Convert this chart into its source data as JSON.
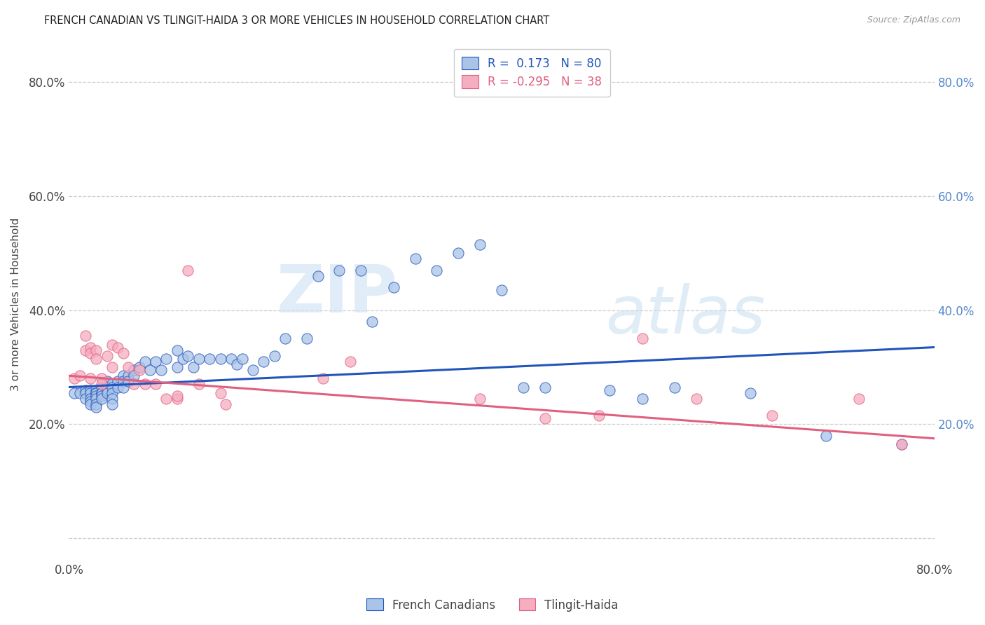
{
  "title": "FRENCH CANADIAN VS TLINGIT-HAIDA 3 OR MORE VEHICLES IN HOUSEHOLD CORRELATION CHART",
  "source": "Source: ZipAtlas.com",
  "ylabel": "3 or more Vehicles in Household",
  "legend_label1": "French Canadians",
  "legend_label2": "Tlingit-Haida",
  "r1": 0.173,
  "n1": 80,
  "r2": -0.295,
  "n2": 38,
  "color_blue": "#aac4e8",
  "color_pink": "#f5adc0",
  "line_color_blue": "#2255bb",
  "line_color_pink": "#e06080",
  "watermark_zip": "ZIP",
  "watermark_atlas": "atlas",
  "xlim": [
    0.0,
    0.8
  ],
  "ylim": [
    -0.04,
    0.86
  ],
  "blue_scatter_x": [
    0.005,
    0.01,
    0.015,
    0.015,
    0.015,
    0.02,
    0.02,
    0.02,
    0.02,
    0.02,
    0.025,
    0.025,
    0.025,
    0.025,
    0.025,
    0.025,
    0.025,
    0.03,
    0.03,
    0.03,
    0.03,
    0.03,
    0.035,
    0.035,
    0.035,
    0.035,
    0.04,
    0.04,
    0.04,
    0.04,
    0.04,
    0.045,
    0.045,
    0.05,
    0.05,
    0.05,
    0.055,
    0.055,
    0.06,
    0.06,
    0.065,
    0.07,
    0.075,
    0.08,
    0.085,
    0.09,
    0.1,
    0.1,
    0.105,
    0.11,
    0.115,
    0.12,
    0.13,
    0.14,
    0.15,
    0.155,
    0.16,
    0.17,
    0.18,
    0.19,
    0.2,
    0.22,
    0.23,
    0.25,
    0.27,
    0.28,
    0.3,
    0.32,
    0.34,
    0.36,
    0.38,
    0.4,
    0.42,
    0.44,
    0.5,
    0.53,
    0.56,
    0.63,
    0.7,
    0.77
  ],
  "blue_scatter_y": [
    0.255,
    0.255,
    0.26,
    0.255,
    0.245,
    0.26,
    0.255,
    0.245,
    0.24,
    0.235,
    0.26,
    0.255,
    0.255,
    0.25,
    0.245,
    0.235,
    0.23,
    0.265,
    0.255,
    0.255,
    0.25,
    0.245,
    0.275,
    0.265,
    0.26,
    0.255,
    0.27,
    0.265,
    0.255,
    0.245,
    0.235,
    0.275,
    0.265,
    0.285,
    0.275,
    0.265,
    0.285,
    0.275,
    0.295,
    0.285,
    0.3,
    0.31,
    0.295,
    0.31,
    0.295,
    0.315,
    0.33,
    0.3,
    0.315,
    0.32,
    0.3,
    0.315,
    0.315,
    0.315,
    0.315,
    0.305,
    0.315,
    0.295,
    0.31,
    0.32,
    0.35,
    0.35,
    0.46,
    0.47,
    0.47,
    0.38,
    0.44,
    0.49,
    0.47,
    0.5,
    0.515,
    0.435,
    0.265,
    0.265,
    0.26,
    0.245,
    0.265,
    0.255,
    0.18,
    0.165
  ],
  "pink_scatter_x": [
    0.005,
    0.01,
    0.015,
    0.015,
    0.02,
    0.02,
    0.02,
    0.025,
    0.025,
    0.03,
    0.03,
    0.035,
    0.04,
    0.04,
    0.045,
    0.05,
    0.055,
    0.06,
    0.065,
    0.07,
    0.08,
    0.09,
    0.1,
    0.1,
    0.11,
    0.12,
    0.14,
    0.145,
    0.235,
    0.26,
    0.38,
    0.44,
    0.49,
    0.53,
    0.58,
    0.65,
    0.73,
    0.77
  ],
  "pink_scatter_y": [
    0.28,
    0.285,
    0.355,
    0.33,
    0.335,
    0.325,
    0.28,
    0.33,
    0.315,
    0.28,
    0.27,
    0.32,
    0.34,
    0.3,
    0.335,
    0.325,
    0.3,
    0.27,
    0.295,
    0.27,
    0.27,
    0.245,
    0.245,
    0.25,
    0.47,
    0.27,
    0.255,
    0.235,
    0.28,
    0.31,
    0.245,
    0.21,
    0.215,
    0.35,
    0.245,
    0.215,
    0.245,
    0.165
  ]
}
